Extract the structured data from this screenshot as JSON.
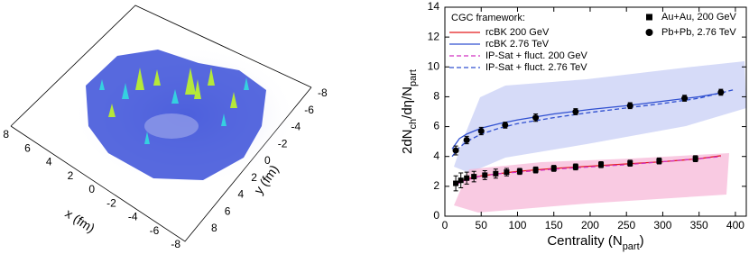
{
  "chart_data": [
    {
      "type": "surface",
      "xlabel": "x (fm)",
      "ylabel": "y (fm)",
      "xticks": [
        8,
        6,
        4,
        2,
        0,
        -2,
        -4,
        -6,
        -8
      ],
      "yticks": [
        -8,
        -6,
        -4,
        -2,
        0,
        2,
        4,
        6,
        8
      ]
    },
    {
      "type": "line",
      "xlabel": [
        "Centrality (N",
        "part",
        ")"
      ],
      "ylabel": [
        "2dN",
        "ch",
        "/dη/N",
        "part"
      ],
      "xlim": [
        0,
        415
      ],
      "ylim": [
        0,
        14
      ],
      "xticks": [
        0,
        50,
        100,
        150,
        200,
        250,
        300,
        350,
        400
      ],
      "yticks": [
        0,
        2,
        4,
        6,
        8,
        10,
        12,
        14
      ],
      "legend_title": "CGC framework:",
      "series": [
        {
          "name": "rcBK 200 GeV",
          "color": "#e41a1c",
          "dash": false,
          "x": [
            15,
            25,
            35,
            50,
            75,
            100,
            150,
            200,
            250,
            300,
            350,
            380
          ],
          "values": [
            2.2,
            2.4,
            2.55,
            2.7,
            2.85,
            3.0,
            3.2,
            3.35,
            3.5,
            3.65,
            3.85,
            4.05
          ]
        },
        {
          "name": "rcBK 2.76 TeV",
          "color": "#3050d0",
          "dash": false,
          "x": [
            10,
            20,
            30,
            50,
            75,
            100,
            150,
            200,
            250,
            300,
            350,
            385
          ],
          "values": [
            4.5,
            5.2,
            5.5,
            5.9,
            6.2,
            6.45,
            6.85,
            7.15,
            7.4,
            7.7,
            8.0,
            8.3
          ]
        },
        {
          "name": "IP-Sat + fluct. 200 GeV",
          "color": "#d030c0",
          "dash": true,
          "x": [
            15,
            25,
            35,
            50,
            75,
            100,
            150,
            200,
            250,
            300,
            350,
            380
          ],
          "values": [
            2.1,
            2.35,
            2.5,
            2.7,
            2.85,
            2.95,
            3.15,
            3.3,
            3.45,
            3.65,
            3.85,
            4.0
          ]
        },
        {
          "name": "IP-Sat + fluct. 2.76 TeV",
          "color": "#3050d0",
          "dash": true,
          "x": [
            10,
            20,
            30,
            50,
            75,
            100,
            150,
            200,
            250,
            300,
            350,
            400
          ],
          "values": [
            4.0,
            4.6,
            5.0,
            5.5,
            5.9,
            6.2,
            6.6,
            6.95,
            7.25,
            7.55,
            7.9,
            8.5
          ]
        }
      ],
      "points": [
        {
          "name": "Au+Au, 200 GeV",
          "marker": "square",
          "color": "#000000",
          "x": [
            15,
            22,
            30,
            40,
            55,
            70,
            85,
            103,
            125,
            150,
            180,
            215,
            255,
            295,
            345
          ],
          "values": [
            2.2,
            2.4,
            2.55,
            2.65,
            2.75,
            2.85,
            2.95,
            3.0,
            3.1,
            3.2,
            3.3,
            3.45,
            3.55,
            3.7,
            3.85
          ],
          "errors": [
            0.5,
            0.5,
            0.4,
            0.35,
            0.3,
            0.3,
            0.25,
            0.2,
            0.2,
            0.2,
            0.2,
            0.2,
            0.2,
            0.2,
            0.2
          ]
        },
        {
          "name": "Pb+Pb, 2.76 TeV",
          "marker": "circle",
          "color": "#000000",
          "x": [
            15,
            30,
            50,
            83,
            125,
            180,
            255,
            330,
            380
          ],
          "values": [
            4.4,
            5.1,
            5.7,
            6.1,
            6.6,
            7.0,
            7.4,
            7.9,
            8.3
          ],
          "errors": [
            0.3,
            0.25,
            0.25,
            0.2,
            0.25,
            0.2,
            0.2,
            0.2,
            0.2
          ]
        }
      ]
    }
  ]
}
